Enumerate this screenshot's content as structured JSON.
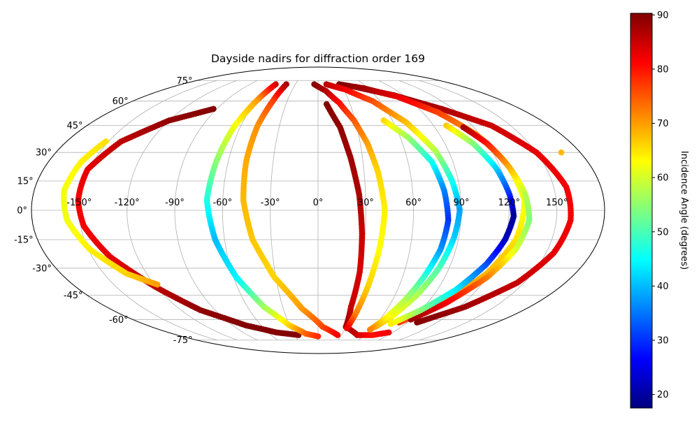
{
  "chart_data": {
    "type": "scatter",
    "projection": "mollweide",
    "title": "Dayside nadirs for diffraction order 169",
    "x_axis": {
      "label": "",
      "unit": "degrees longitude",
      "range": [
        -180,
        180
      ],
      "ticks": [
        -150,
        -120,
        -90,
        -60,
        -30,
        0,
        30,
        60,
        90,
        120,
        150
      ],
      "tick_labels": [
        "-150°",
        "-120°",
        "-90°",
        "-60°",
        "-30°",
        "0°",
        "30°",
        "60°",
        "90°",
        "120°",
        "150°"
      ]
    },
    "y_axis": {
      "label": "",
      "unit": "degrees latitude",
      "range": [
        -90,
        90
      ],
      "ticks": [
        75,
        60,
        45,
        30,
        15,
        0,
        -15,
        -30,
        -45,
        -60,
        -75
      ],
      "tick_labels": [
        "75°",
        "60°",
        "45°",
        "30°",
        "15°",
        "0°",
        "-15°",
        "-30°",
        "-45°",
        "-60°",
        "-75°"
      ]
    },
    "grid": true,
    "colorbar": {
      "label": "Incidence Angle (degrees)",
      "colormap": "jet",
      "range": [
        17.5,
        90.3
      ],
      "ticks": [
        20,
        30,
        40,
        50,
        60,
        70,
        80,
        90
      ],
      "tick_labels": [
        "20",
        "30",
        "40",
        "50",
        "60",
        "70",
        "80",
        "90"
      ]
    },
    "series": [
      {
        "points": [
          {
            "lon": -152,
            "lat": 36,
            "inc": 65
          },
          {
            "lon": -158,
            "lat": 25,
            "inc": 64
          },
          {
            "lon": -161,
            "lat": 10,
            "inc": 62
          },
          {
            "lon": -158,
            "lat": -5,
            "inc": 62
          },
          {
            "lon": -149,
            "lat": -20,
            "inc": 64
          },
          {
            "lon": -134,
            "lat": -33,
            "inc": 66
          },
          {
            "lon": -118,
            "lat": -39,
            "inc": 70
          }
        ]
      },
      {
        "points": [
          {
            "lon": -93,
            "lat": 55,
            "inc": 90
          },
          {
            "lon": -120,
            "lat": 48,
            "inc": 89
          },
          {
            "lon": -141,
            "lat": 36,
            "inc": 86
          },
          {
            "lon": -151,
            "lat": 21,
            "inc": 83
          },
          {
            "lon": -151,
            "lat": 5,
            "inc": 82
          },
          {
            "lon": -148,
            "lat": -8,
            "inc": 82
          },
          {
            "lon": -138,
            "lat": -24,
            "inc": 83
          },
          {
            "lon": -120,
            "lat": -41,
            "inc": 86
          },
          {
            "lon": -103,
            "lat": -54,
            "inc": 89
          },
          {
            "lon": -76,
            "lat": -64,
            "inc": 90
          },
          {
            "lon": -50,
            "lat": -69,
            "inc": 90
          },
          {
            "lon": -25,
            "lat": -71,
            "inc": 90
          }
        ]
      },
      {
        "points": [
          {
            "lon": -56,
            "lat": 72,
            "inc": 85
          },
          {
            "lon": -60,
            "lat": 60,
            "inc": 70
          },
          {
            "lon": -65,
            "lat": 44,
            "inc": 62
          },
          {
            "lon": -68,
            "lat": 25,
            "inc": 55
          },
          {
            "lon": -70,
            "lat": 5,
            "inc": 47
          },
          {
            "lon": -66,
            "lat": -15,
            "inc": 40
          },
          {
            "lon": -58,
            "lat": -35,
            "inc": 44
          },
          {
            "lon": -46,
            "lat": -52,
            "inc": 56
          },
          {
            "lon": -30,
            "lat": -64,
            "inc": 66
          },
          {
            "lon": -15,
            "lat": -70,
            "inc": 74
          },
          {
            "lon": 0,
            "lat": -72,
            "inc": 78
          }
        ]
      },
      {
        "points": [
          {
            "lon": -42,
            "lat": 72,
            "inc": 88
          },
          {
            "lon": -44,
            "lat": 60,
            "inc": 77
          },
          {
            "lon": -47,
            "lat": 45,
            "inc": 71
          },
          {
            "lon": -48,
            "lat": 25,
            "inc": 69
          },
          {
            "lon": -47,
            "lat": 5,
            "inc": 68
          },
          {
            "lon": -42,
            "lat": -15,
            "inc": 67
          },
          {
            "lon": -31,
            "lat": -35,
            "inc": 66
          },
          {
            "lon": -14,
            "lat": -53,
            "inc": 70
          },
          {
            "lon": 5,
            "lat": -65,
            "inc": 76
          },
          {
            "lon": 25,
            "lat": -71,
            "inc": 82
          }
        ]
      },
      {
        "points": [
          {
            "lon": -5,
            "lat": 72,
            "inc": 90
          },
          {
            "lon": 9,
            "lat": 67,
            "inc": 87
          },
          {
            "lon": 20,
            "lat": 59,
            "inc": 81
          },
          {
            "lon": 29,
            "lat": 48,
            "inc": 75
          },
          {
            "lon": 35,
            "lat": 35,
            "inc": 70
          },
          {
            "lon": 39,
            "lat": 20,
            "inc": 66
          },
          {
            "lon": 42,
            "lat": 0,
            "inc": 64
          },
          {
            "lon": 40,
            "lat": -20,
            "inc": 63
          },
          {
            "lon": 37,
            "lat": -40,
            "inc": 66
          },
          {
            "lon": 34,
            "lat": -57,
            "inc": 72
          },
          {
            "lon": 32,
            "lat": -66,
            "inc": 82
          }
        ]
      },
      {
        "points": [
          {
            "lon": 8,
            "lat": 58,
            "inc": 90
          },
          {
            "lon": 17,
            "lat": 44,
            "inc": 89
          },
          {
            "lon": 22,
            "lat": 27,
            "inc": 88
          },
          {
            "lon": 26,
            "lat": 8,
            "inc": 87
          },
          {
            "lon": 28,
            "lat": -12,
            "inc": 85
          },
          {
            "lon": 29,
            "lat": -32,
            "inc": 84
          },
          {
            "lon": 28,
            "lat": -52,
            "inc": 85
          },
          {
            "lon": 30,
            "lat": -65,
            "inc": 88
          },
          {
            "lon": 50,
            "lat": -71,
            "inc": 85
          },
          {
            "lon": 70,
            "lat": -71,
            "inc": 80
          },
          {
            "lon": 85,
            "lat": -69,
            "inc": 82
          }
        ]
      },
      {
        "points": [
          {
            "lon": 11,
            "lat": 72,
            "inc": 86
          },
          {
            "lon": 32,
            "lat": 68,
            "inc": 82
          },
          {
            "lon": 53,
            "lat": 60,
            "inc": 76
          },
          {
            "lon": 70,
            "lat": 47,
            "inc": 68
          },
          {
            "lon": 81,
            "lat": 31,
            "inc": 58
          },
          {
            "lon": 86,
            "lat": 15,
            "inc": 46
          },
          {
            "lon": 89,
            "lat": 0,
            "inc": 38
          },
          {
            "lon": 87,
            "lat": -14,
            "inc": 41
          },
          {
            "lon": 83,
            "lat": -30,
            "inc": 50
          },
          {
            "lon": 77,
            "lat": -45,
            "inc": 57
          },
          {
            "lon": 69,
            "lat": -58,
            "inc": 63
          },
          {
            "lon": 62,
            "lat": -65,
            "inc": 70
          }
        ]
      },
      {
        "points": [
          {
            "lon": 53,
            "lat": 48,
            "inc": 66
          },
          {
            "lon": 66,
            "lat": 38,
            "inc": 56
          },
          {
            "lon": 76,
            "lat": 25,
            "inc": 46
          },
          {
            "lon": 80,
            "lat": 10,
            "inc": 36
          },
          {
            "lon": 82,
            "lat": -5,
            "inc": 30
          },
          {
            "lon": 80,
            "lat": -20,
            "inc": 37
          },
          {
            "lon": 75,
            "lat": -35,
            "inc": 48
          },
          {
            "lon": 70,
            "lat": -48,
            "inc": 57
          },
          {
            "lon": 64,
            "lat": -60,
            "inc": 64
          },
          {
            "lon": 59,
            "lat": -67,
            "inc": 72
          }
        ]
      },
      {
        "points": [
          {
            "lon": 28,
            "lat": 72,
            "inc": 90
          },
          {
            "lon": 55,
            "lat": 69,
            "inc": 88
          },
          {
            "lon": 82,
            "lat": 63,
            "inc": 83
          },
          {
            "lon": 103,
            "lat": 53,
            "inc": 77
          },
          {
            "lon": 117,
            "lat": 40,
            "inc": 70
          },
          {
            "lon": 125,
            "lat": 25,
            "inc": 64
          },
          {
            "lon": 130,
            "lat": 5,
            "inc": 62
          },
          {
            "lon": 127,
            "lat": -15,
            "inc": 65
          },
          {
            "lon": 118,
            "lat": -33,
            "inc": 68
          },
          {
            "lon": 102,
            "lat": -50,
            "inc": 72
          },
          {
            "lon": 82,
            "lat": -62,
            "inc": 77
          }
        ]
      },
      {
        "points": [
          {
            "lon": 100,
            "lat": 45,
            "inc": 67
          },
          {
            "lon": 110,
            "lat": 35,
            "inc": 55
          },
          {
            "lon": 117,
            "lat": 22,
            "inc": 42
          },
          {
            "lon": 121,
            "lat": 8,
            "inc": 30
          },
          {
            "lon": 123,
            "lat": -3,
            "inc": 19
          },
          {
            "lon": 120,
            "lat": -15,
            "inc": 22
          },
          {
            "lon": 114,
            "lat": -28,
            "inc": 32
          },
          {
            "lon": 104,
            "lat": -42,
            "inc": 43
          },
          {
            "lon": 90,
            "lat": -54,
            "inc": 54
          },
          {
            "lon": 75,
            "lat": -63,
            "inc": 64
          }
        ]
      },
      {
        "points": [
          {
            "lon": 112,
            "lat": 44,
            "inc": 88
          },
          {
            "lon": 120,
            "lat": 35,
            "inc": 80
          },
          {
            "lon": 126,
            "lat": 22,
            "inc": 69
          },
          {
            "lon": 131,
            "lat": 8,
            "inc": 58
          },
          {
            "lon": 133,
            "lat": -5,
            "inc": 54
          },
          {
            "lon": 129,
            "lat": -20,
            "inc": 60
          },
          {
            "lon": 120,
            "lat": -35,
            "inc": 72
          },
          {
            "lon": 105,
            "lat": -50,
            "inc": 82
          },
          {
            "lon": 90,
            "lat": -60,
            "inc": 88
          }
        ]
      },
      {
        "points": [
          {
            "lon": 46,
            "lat": 70,
            "inc": 90
          },
          {
            "lon": 80,
            "lat": 64,
            "inc": 89
          },
          {
            "lon": 110,
            "lat": 55,
            "inc": 87
          },
          {
            "lon": 135,
            "lat": 45,
            "inc": 85
          },
          {
            "lon": 150,
            "lat": 30,
            "inc": 83
          },
          {
            "lon": 158,
            "lat": 12,
            "inc": 82
          },
          {
            "lon": 159,
            "lat": -5,
            "inc": 82
          },
          {
            "lon": 155,
            "lat": -22,
            "inc": 83
          },
          {
            "lon": 145,
            "lat": -38,
            "inc": 85
          },
          {
            "lon": 125,
            "lat": -52,
            "inc": 88
          },
          {
            "lon": 100,
            "lat": -62,
            "inc": 90
          }
        ]
      },
      {
        "points": [
          {
            "lon": 167,
            "lat": 30,
            "inc": 68
          }
        ]
      }
    ]
  }
}
